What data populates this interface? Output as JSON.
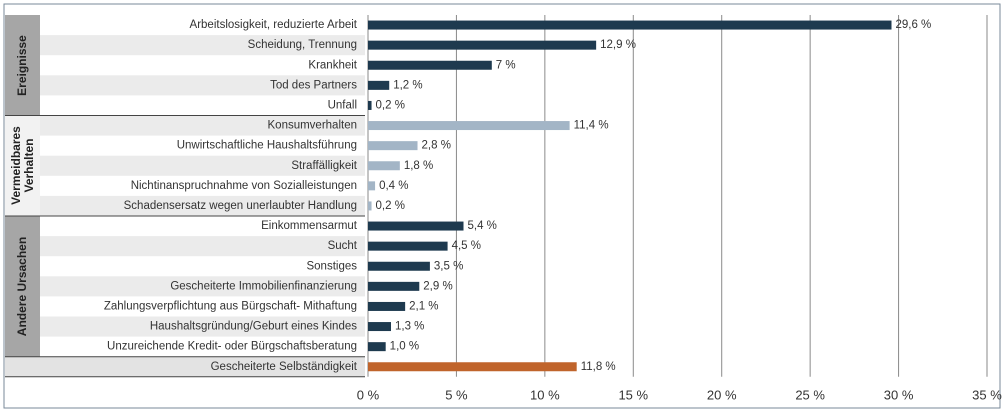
{
  "chart_data": {
    "type": "bar",
    "orientation": "horizontal",
    "groups": [
      {
        "name": "Ereignisse",
        "color": "#1e3a4f",
        "categories": [
          "Arbeitslosigkeit, reduzierte Arbeit",
          "Scheidung, Trennung",
          "Krankheit",
          "Tod des Partners",
          "Unfall"
        ],
        "values": [
          29.6,
          12.9,
          7,
          1.2,
          0.2
        ],
        "value_labels": [
          "29,6 %",
          "12,9 %",
          "7 %",
          "1,2 %",
          "0,2 %"
        ]
      },
      {
        "name": "Vermeidbares Verhalten",
        "color": "#a3b5c6",
        "categories": [
          "Konsumverhalten",
          "Unwirtschaftliche Haushaltsführung",
          "Straffälligkeit",
          "Nichtinanspruchnahme von Sozialleistungen",
          "Schadensersatz wegen unerlaubter Handlung"
        ],
        "values": [
          11.4,
          2.8,
          1.8,
          0.4,
          0.2
        ],
        "value_labels": [
          "11,4 %",
          "2,8 %",
          "1,8 %",
          "0,4 %",
          "0,2 %"
        ]
      },
      {
        "name": "Andere Ursachen",
        "color": "#1e3a4f",
        "categories": [
          "Einkommensarmut",
          "Sucht",
          "Sonstiges",
          "Gescheiterte Immobilienfinanzierung",
          "Zahlungsverpflichtung aus Bürgschaft- Mithaftung",
          "Haushaltsgründung/Geburt eines Kindes",
          "Unzureichende Kredit- oder Bürgschaftsberatung"
        ],
        "values": [
          5.4,
          4.5,
          3.5,
          2.9,
          2.1,
          1.3,
          1.0
        ],
        "value_labels": [
          "5,4 %",
          "4,5 %",
          "3,5 %",
          "2,9 %",
          "2,1 %",
          "1,3 %",
          "1,0 %"
        ]
      },
      {
        "color": "#c0642b",
        "categories": [
          "Gescheiterte Selbständigkeit"
        ],
        "values": [
          11.8
        ],
        "value_labels": [
          "11,8 %"
        ]
      }
    ],
    "xlim": [
      0,
      35
    ],
    "xticks": [
      {
        "value": 0,
        "label": "0 %"
      },
      {
        "value": 5,
        "label": "5 %"
      },
      {
        "value": 10,
        "label": "10 %"
      },
      {
        "value": 15,
        "label": "15 %"
      },
      {
        "value": 20,
        "label": "20 %"
      },
      {
        "value": 25,
        "label": "25 %"
      },
      {
        "value": 30,
        "label": "30 %"
      },
      {
        "value": 35,
        "label": "35 %"
      }
    ],
    "grid": true
  }
}
